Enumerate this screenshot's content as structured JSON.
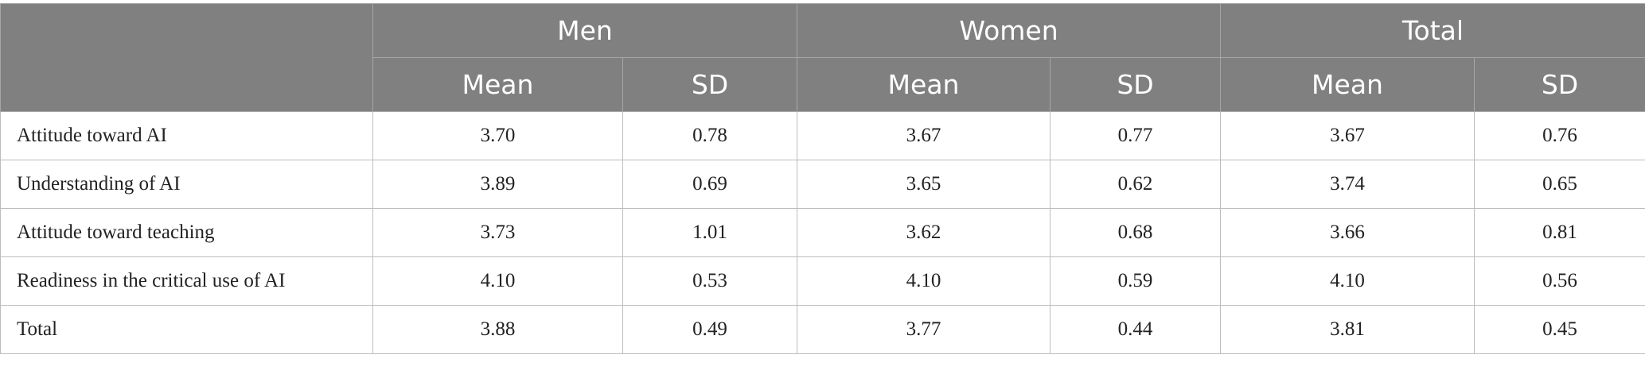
{
  "header": {
    "groups": [
      "Men",
      "Women",
      "Total"
    ],
    "subcolumns": [
      "Mean",
      "SD",
      "Mean",
      "SD",
      "Mean",
      "SD"
    ]
  },
  "rows": [
    {
      "label": "Attitude toward AI",
      "values": [
        "3.70",
        "0.78",
        "3.67",
        "0.77",
        "3.67",
        "0.76"
      ]
    },
    {
      "label": "Understanding of AI",
      "values": [
        "3.89",
        "0.69",
        "3.65",
        "0.62",
        "3.74",
        "0.65"
      ]
    },
    {
      "label": "Attitude toward teaching",
      "values": [
        "3.73",
        "1.01",
        "3.62",
        "0.68",
        "3.66",
        "0.81"
      ]
    },
    {
      "label": "Readiness in the critical use of AI",
      "values": [
        "4.10",
        "0.53",
        "4.10",
        "0.59",
        "4.10",
        "0.56"
      ]
    },
    {
      "label": "Total",
      "values": [
        "3.88",
        "0.49",
        "3.77",
        "0.44",
        "3.81",
        "0.45"
      ]
    }
  ]
}
